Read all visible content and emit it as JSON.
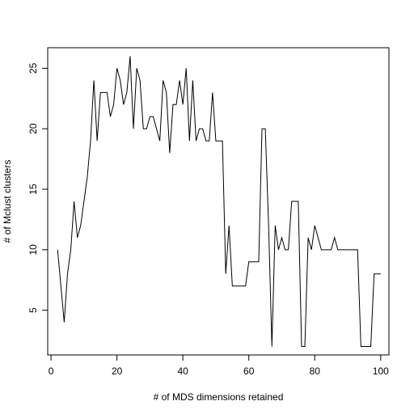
{
  "chart_data": {
    "type": "line",
    "title": "",
    "xlabel": "# of MDS dimensions retained",
    "ylabel": "# of Mclust clusters",
    "xlim": [
      -1,
      102.5
    ],
    "ylim": [
      1.3,
      26.7
    ],
    "xticks": [
      0,
      20,
      40,
      60,
      80,
      100
    ],
    "yticks": [
      5,
      10,
      15,
      20,
      25
    ],
    "grid": false,
    "series": [
      {
        "x": [
          2,
          3,
          4,
          5,
          6,
          7,
          8,
          9,
          10,
          11,
          12,
          13,
          14,
          15,
          16,
          17,
          18,
          19,
          20,
          21,
          22,
          23,
          24,
          25,
          26,
          27,
          28,
          29,
          30,
          31,
          32,
          33,
          34,
          35,
          36,
          37,
          38,
          39,
          40,
          41,
          42,
          43,
          44,
          45,
          46,
          47,
          48,
          49,
          50,
          51,
          52,
          53,
          54,
          55,
          56,
          57,
          58,
          59,
          60,
          61,
          62,
          63,
          64,
          65,
          66,
          67,
          68,
          69,
          70,
          71,
          72,
          73,
          74,
          75,
          76,
          77,
          78,
          79,
          80,
          81,
          82,
          83,
          84,
          85,
          86,
          87,
          88,
          89,
          90,
          91,
          92,
          93,
          94,
          95,
          96,
          97,
          98,
          99,
          100
        ],
        "y": [
          10,
          7,
          4,
          8,
          10,
          14,
          11,
          12,
          14,
          16,
          19,
          24,
          19,
          23,
          23,
          23,
          21,
          22,
          25,
          24,
          22,
          23,
          26,
          20,
          25,
          24,
          20,
          20,
          21,
          21,
          20,
          19,
          24,
          23,
          18,
          22,
          22,
          24,
          22,
          25,
          19,
          24,
          19,
          20,
          20,
          19,
          19,
          23,
          19,
          19,
          19,
          8,
          12,
          7,
          7,
          7,
          7,
          7,
          9,
          9,
          9,
          9,
          20,
          20,
          12,
          2,
          12,
          10,
          11,
          10,
          10,
          14,
          14,
          14,
          2,
          2,
          11,
          10,
          12,
          11,
          10,
          10,
          10,
          10,
          11,
          10,
          10,
          10,
          10,
          10,
          10,
          10,
          2,
          2,
          2,
          2,
          8,
          8,
          8
        ]
      }
    ]
  }
}
